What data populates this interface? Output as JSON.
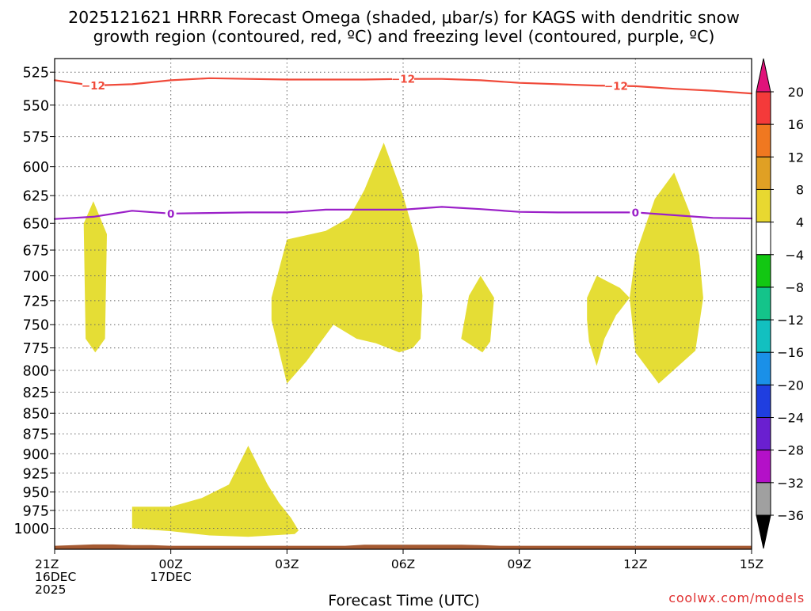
{
  "title_line1": "2025121621 HRRR Forecast Omega (shaded, μbar/s) for KAGS with dendritic snow",
  "title_line2": "growth region (contoured, red, ºC) and freezing level (contoured, purple, ºC)",
  "xlabel": "Forecast Time (UTC)",
  "credit": "coolwx.com/models",
  "chart_data": {
    "type": "area",
    "title": "2025121621 HRRR Forecast Omega (shaded, μbar/s) for KAGS with dendritic snow growth region (contoured, red, ºC) and freezing level (contoured, purple, ºC)",
    "xlabel": "Forecast Time (UTC)",
    "ylabel": "",
    "x_unit": "hours since 2025-12-16 21Z",
    "xlim": [
      0,
      18
    ],
    "ylim": [
      1030,
      515
    ],
    "y_scale": "log-pressure (inverted)",
    "grid": true,
    "x_ticks": [
      {
        "x": 0,
        "lines": [
          "21Z",
          "16DEC",
          "2025"
        ]
      },
      {
        "x": 3,
        "lines": [
          "00Z",
          "17DEC"
        ]
      },
      {
        "x": 6,
        "lines": [
          "03Z"
        ]
      },
      {
        "x": 9,
        "lines": [
          "06Z"
        ]
      },
      {
        "x": 12,
        "lines": [
          "09Z"
        ]
      },
      {
        "x": 15,
        "lines": [
          "12Z"
        ]
      },
      {
        "x": 18,
        "lines": [
          "15Z"
        ]
      }
    ],
    "y_ticks": [
      525,
      550,
      575,
      600,
      625,
      650,
      675,
      700,
      725,
      750,
      775,
      800,
      825,
      850,
      875,
      900,
      925,
      950,
      975,
      1000
    ],
    "series": [
      {
        "name": "-12",
        "kind": "contour",
        "color": "#f04a3a",
        "label": "-12",
        "label_x": [
          1.0,
          9.0,
          14.5
        ],
        "points": [
          [
            0,
            531
          ],
          [
            1.0,
            535
          ],
          [
            2.0,
            534
          ],
          [
            3.0,
            531
          ],
          [
            4.0,
            529.5
          ],
          [
            5.0,
            530
          ],
          [
            6.0,
            530.5
          ],
          [
            7.0,
            530.5
          ],
          [
            8.0,
            530.5
          ],
          [
            9.0,
            530
          ],
          [
            10.0,
            530
          ],
          [
            11.0,
            531
          ],
          [
            12.0,
            533
          ],
          [
            13.0,
            534
          ],
          [
            14.0,
            535
          ],
          [
            15.0,
            535.5
          ],
          [
            16.0,
            537.5
          ],
          [
            17.0,
            539
          ],
          [
            18.0,
            541
          ]
        ]
      },
      {
        "name": "0",
        "kind": "contour",
        "color": "#9b20c8",
        "label": "0",
        "label_x": [
          3.0,
          15.0
        ],
        "points": [
          [
            0,
            646
          ],
          [
            1.0,
            644
          ],
          [
            2.0,
            638.5
          ],
          [
            3.0,
            641
          ],
          [
            4.0,
            640.5
          ],
          [
            5.0,
            640
          ],
          [
            6.0,
            640
          ],
          [
            7.0,
            637.5
          ],
          [
            8.0,
            637.5
          ],
          [
            9.0,
            637.5
          ],
          [
            10.0,
            635
          ],
          [
            11.0,
            637
          ],
          [
            12.0,
            639.5
          ],
          [
            13.0,
            640
          ],
          [
            14.0,
            640
          ],
          [
            15.0,
            640
          ],
          [
            16.0,
            642.5
          ],
          [
            17.0,
            645
          ],
          [
            18.0,
            645.5
          ]
        ]
      }
    ],
    "shaded_regions": [
      {
        "band": "4 to 8",
        "color": "#e5dd35",
        "points": [
          [
            0.75,
            650
          ],
          [
            1.0,
            630
          ],
          [
            1.35,
            660
          ],
          [
            1.3,
            765
          ],
          [
            1.05,
            780
          ],
          [
            0.8,
            765
          ]
        ]
      },
      {
        "band": "4 to 8",
        "color": "#e5dd35",
        "points": [
          [
            6.0,
            665
          ],
          [
            7.0,
            657
          ],
          [
            7.6,
            645
          ],
          [
            8.0,
            620
          ],
          [
            8.5,
            580
          ],
          [
            9.0,
            625
          ],
          [
            9.4,
            675
          ],
          [
            9.5,
            720
          ],
          [
            9.45,
            765
          ],
          [
            9.25,
            775
          ],
          [
            8.9,
            780
          ],
          [
            8.3,
            770
          ],
          [
            7.8,
            765
          ],
          [
            7.2,
            750
          ],
          [
            6.5,
            790
          ],
          [
            6.0,
            815
          ],
          [
            5.6,
            745
          ],
          [
            5.6,
            722
          ]
        ]
      },
      {
        "band": "4 to 8",
        "color": "#e5dd35",
        "points": [
          [
            10.7,
            720
          ],
          [
            11.0,
            700
          ],
          [
            11.35,
            722
          ],
          [
            11.25,
            768
          ],
          [
            11.05,
            780
          ],
          [
            10.5,
            765
          ]
        ]
      },
      {
        "band": "4 to 8",
        "color": "#e5dd35",
        "points": [
          [
            13.75,
            722
          ],
          [
            14.0,
            700
          ],
          [
            14.6,
            712
          ],
          [
            14.85,
            722
          ],
          [
            14.6,
            735
          ],
          [
            14.5,
            740
          ],
          [
            14.2,
            765
          ],
          [
            14.0,
            795
          ],
          [
            13.8,
            768
          ],
          [
            13.75,
            745
          ]
        ]
      },
      {
        "band": "4 to 8",
        "color": "#e5dd35",
        "points": [
          [
            14.85,
            722
          ],
          [
            15.0,
            680
          ],
          [
            15.3,
            648
          ],
          [
            15.5,
            628
          ],
          [
            16.0,
            605
          ],
          [
            16.4,
            640
          ],
          [
            16.65,
            680
          ],
          [
            16.75,
            722
          ],
          [
            16.55,
            778
          ],
          [
            15.6,
            815
          ],
          [
            15.0,
            780
          ]
        ]
      },
      {
        "band": "4 to 8",
        "color": "#e5dd35",
        "points": [
          [
            2.0,
            970
          ],
          [
            3.0,
            970
          ],
          [
            3.8,
            958
          ],
          [
            4.5,
            940
          ],
          [
            5.0,
            890
          ],
          [
            5.5,
            940
          ],
          [
            5.8,
            965
          ],
          [
            6.1,
            985
          ],
          [
            6.3,
            1003
          ],
          [
            6.2,
            1008
          ],
          [
            5.0,
            1012
          ],
          [
            4.0,
            1010
          ],
          [
            3.0,
            1004
          ],
          [
            2.0,
            1000
          ]
        ]
      }
    ],
    "terrain": {
      "color": "#a55a32",
      "points": [
        [
          0,
          1025
        ],
        [
          0.5,
          1024
        ],
        [
          1.0,
          1023
        ],
        [
          1.5,
          1023
        ],
        [
          2.0,
          1024
        ],
        [
          2.5,
          1024
        ],
        [
          3.0,
          1025
        ],
        [
          3.5,
          1025
        ],
        [
          4.0,
          1025
        ],
        [
          4.5,
          1025
        ],
        [
          5.0,
          1025
        ],
        [
          5.5,
          1025
        ],
        [
          6.0,
          1025
        ],
        [
          6.5,
          1025
        ],
        [
          7.0,
          1025
        ],
        [
          7.5,
          1025
        ],
        [
          8.0,
          1023.5
        ],
        [
          8.5,
          1023.5
        ],
        [
          9.0,
          1023.5
        ],
        [
          9.5,
          1023.5
        ],
        [
          10.0,
          1023.5
        ],
        [
          10.5,
          1023.5
        ],
        [
          11.0,
          1024
        ],
        [
          11.5,
          1025
        ],
        [
          12.0,
          1025
        ],
        [
          13.0,
          1025
        ],
        [
          14.0,
          1025
        ],
        [
          15.0,
          1025
        ],
        [
          16.0,
          1025
        ],
        [
          17.0,
          1025
        ],
        [
          18.0,
          1025
        ]
      ]
    },
    "colorbar": {
      "top_triangle_color": "#e0137a",
      "bottom_triangle_color": "#000000",
      "bands": [
        {
          "color": "#f43a3a"
        },
        {
          "color": "#f07820"
        },
        {
          "color": "#e0a024"
        },
        {
          "color": "#e8d830"
        },
        {
          "color": "#ffffff"
        },
        {
          "color": "#12c712"
        },
        {
          "color": "#14c48a"
        },
        {
          "color": "#12c0c0"
        },
        {
          "color": "#1a90e8"
        },
        {
          "color": "#1f3ee0"
        },
        {
          "color": "#6a1fd0"
        },
        {
          "color": "#b410c8"
        },
        {
          "color": "#a0a0a0"
        }
      ],
      "labels": [
        "20",
        "16",
        "12",
        "8",
        "4",
        "−4",
        "−8",
        "−12",
        "−16",
        "−20",
        "−24",
        "−28",
        "−32",
        "−36"
      ]
    }
  }
}
